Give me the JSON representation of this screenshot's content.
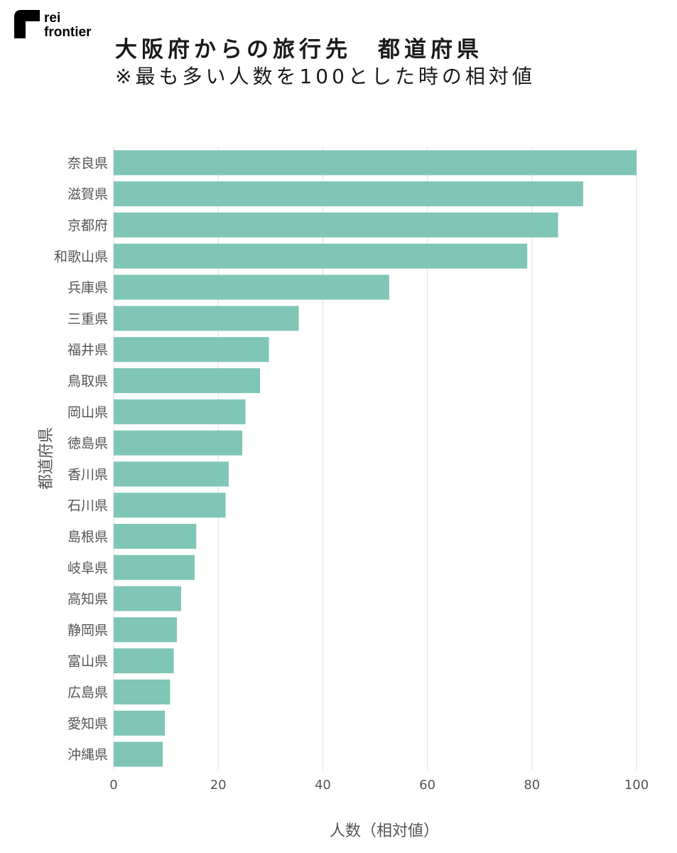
{
  "brand": {
    "line1": "rei",
    "line2": "frontier"
  },
  "header": {
    "title": "大阪府からの旅行先　都道府県",
    "subtitle": "※最も多い人数を100とした時の相対値"
  },
  "chart_data": {
    "type": "bar",
    "orientation": "horizontal",
    "categories": [
      "奈良県",
      "滋賀県",
      "京都府",
      "和歌山県",
      "兵庫県",
      "三重県",
      "福井県",
      "鳥取県",
      "岡山県",
      "徳島県",
      "香川県",
      "石川県",
      "島根県",
      "岐阜県",
      "高知県",
      "静岡県",
      "富山県",
      "広島県",
      "愛知県",
      "沖縄県"
    ],
    "values": [
      100,
      89.8,
      85,
      79.1,
      52.7,
      35.4,
      29.7,
      28,
      25.2,
      24.6,
      22,
      21.4,
      15.8,
      15.5,
      12.9,
      12.1,
      11.5,
      10.8,
      9.8,
      9.4
    ],
    "xlabel": "人数（相対値）",
    "ylabel": "都道府県",
    "xlim": [
      0,
      100
    ],
    "xticks": [
      0,
      20,
      40,
      60,
      80,
      100
    ],
    "grid": true,
    "bar_color": "#7fc6b7",
    "grid_color": "#e3e3e3",
    "tick_label_color": "#555555"
  }
}
